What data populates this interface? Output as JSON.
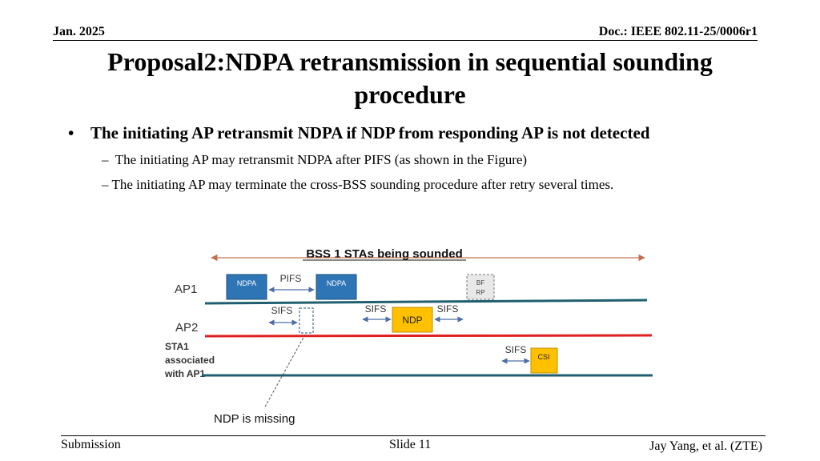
{
  "header": {
    "date": "Jan. 2025",
    "doc": "Doc.: IEEE 802.11-25/0006r1"
  },
  "title": {
    "line1": "Proposal2:NDPA retransmission in sequential sounding",
    "line2": "procedure"
  },
  "bullet": {
    "symbol": "•",
    "text": "The initiating AP retransmit NDPA if NDP from responding AP is not detected"
  },
  "subbullets": [
    {
      "dash": "–",
      "text": " The initiating AP may retransmit NDPA after PIFS (as shown in the Figure)"
    },
    {
      "dash": "–",
      "text": "The initiating AP may terminate the cross-BSS sounding procedure after retry several times."
    }
  ],
  "figure": {
    "banner": "BSS 1 STAs being sounded",
    "rows": {
      "ap1": "AP1",
      "ap2": "AP2",
      "sta1_line1": "STA1",
      "sta1_line2": "associated",
      "sta1_line3": "with AP1"
    },
    "frames": {
      "ndpa1": "NDPA",
      "ndpa2": "NDPA",
      "bfrp_line1": "BF",
      "bfrp_line2": "RP",
      "ndp": "NDP",
      "csi": "CSI"
    },
    "gaps": {
      "pifs": "PIFS",
      "sifs_ap2": "SIFS",
      "sifs_pre_ndp": "SIFS",
      "sifs_post_ndp": "SIFS",
      "sifs_sta": "SIFS"
    },
    "annotation": "NDP is missing",
    "colors": {
      "ap1_line": "#1f5f6f",
      "ap2_line": "#e02020",
      "sta_line": "#1f5f6f",
      "ndpa_fill": "#2e75b6",
      "ndp_fill": "#ffc000",
      "bfrp_fill": "#e8e8e8",
      "arrow": "#4a6fa5",
      "banner_arrow": "#c07050"
    }
  },
  "footer": {
    "left": "Submission",
    "center": "Slide 11",
    "right": "Jay Yang, et al. (ZTE)"
  }
}
